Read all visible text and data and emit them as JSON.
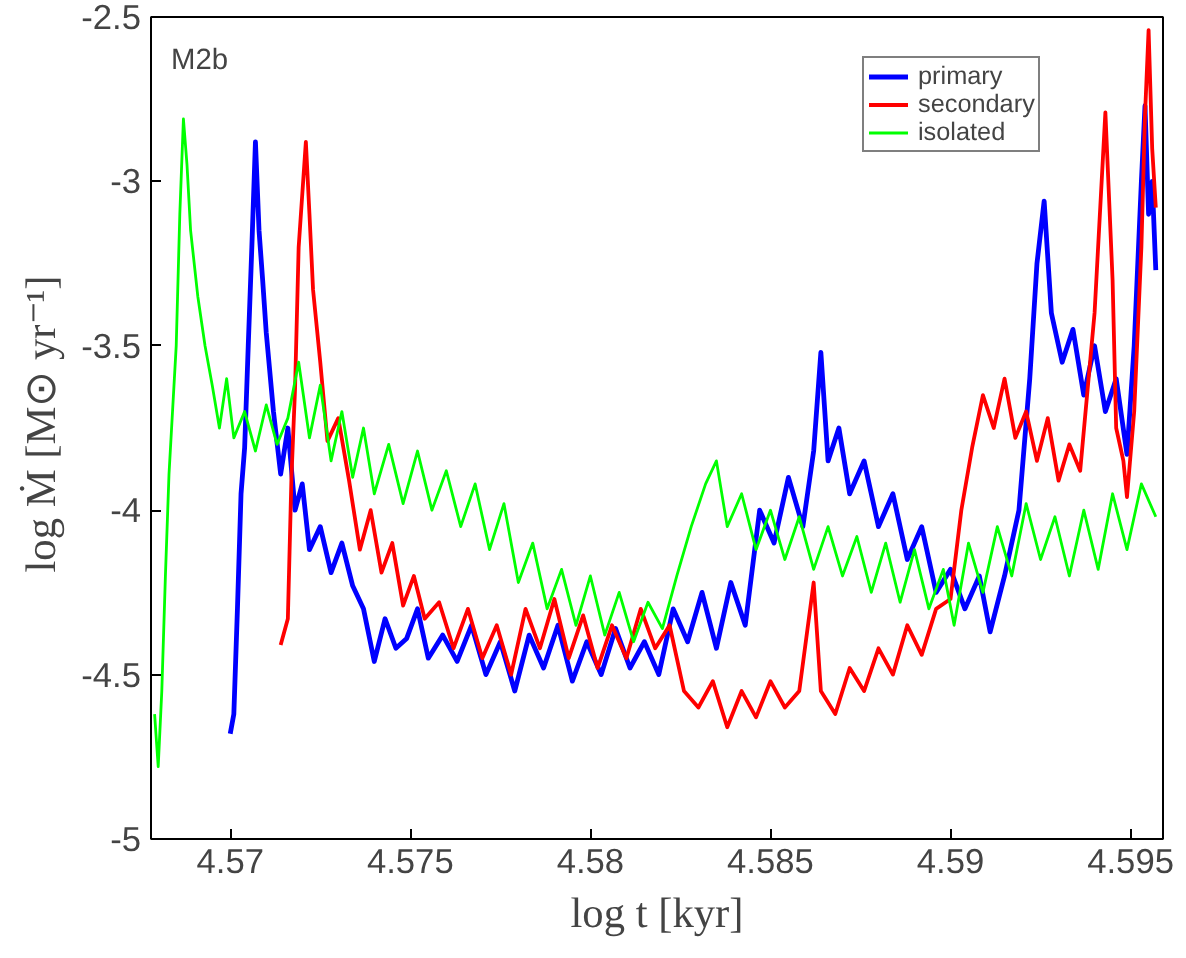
{
  "chart_data": {
    "type": "line",
    "xlabel": "log t [kyr]",
    "ylabel": "log Ṁ [M⊙ yr⁻¹]",
    "annotations": [
      "M2b"
    ],
    "xlim": [
      4.5678,
      4.5959
    ],
    "ylim": [
      -5,
      -2.5
    ],
    "xticks": [
      4.57,
      4.575,
      4.58,
      4.585,
      4.59,
      4.595
    ],
    "yticks": [
      -5,
      -4.5,
      -4,
      -3.5,
      -3,
      -2.5
    ],
    "grid": false,
    "legend": "top right",
    "line_style": "solid",
    "marker": "none",
    "series": [
      {
        "name": "primary",
        "color": "#0000ff",
        "x": [
          4.57,
          4.5701,
          4.5702,
          4.5703,
          4.5704,
          4.5705,
          4.5706,
          4.5707,
          4.5708,
          4.5709,
          4.571,
          4.5712,
          4.5714,
          4.5716,
          4.5718,
          4.572,
          4.5722,
          4.5725,
          4.5728,
          4.5731,
          4.5734,
          4.5737,
          4.574,
          4.5743,
          4.5746,
          4.5749,
          4.5752,
          4.5755,
          4.5759,
          4.5763,
          4.5767,
          4.5771,
          4.5775,
          4.5779,
          4.5783,
          4.5787,
          4.5791,
          4.5795,
          4.5799,
          4.5803,
          4.5807,
          4.5811,
          4.5815,
          4.5819,
          4.5823,
          4.5827,
          4.5831,
          4.5835,
          4.5839,
          4.5843,
          4.5847,
          4.5851,
          4.5855,
          4.5859,
          4.5862,
          4.5864,
          4.5866,
          4.5869,
          4.5872,
          4.5876,
          4.588,
          4.5884,
          4.5888,
          4.5892,
          4.5896,
          4.59,
          4.5904,
          4.5908,
          4.5911,
          4.5915,
          4.5919,
          4.5922,
          4.5924,
          4.5926,
          4.5928,
          4.5931,
          4.5934,
          4.5937,
          4.594,
          4.5943,
          4.5946,
          4.5949,
          4.5951,
          4.5953,
          4.5954,
          4.5955,
          4.5956,
          4.5957
        ],
        "values": [
          -4.68,
          -4.62,
          -4.3,
          -3.95,
          -3.81,
          -3.5,
          -3.2,
          -2.88,
          -3.15,
          -3.3,
          -3.46,
          -3.7,
          -3.89,
          -3.75,
          -4.0,
          -3.92,
          -4.12,
          -4.05,
          -4.19,
          -4.1,
          -4.23,
          -4.3,
          -4.46,
          -4.33,
          -4.42,
          -4.39,
          -4.3,
          -4.45,
          -4.38,
          -4.46,
          -4.35,
          -4.5,
          -4.4,
          -4.55,
          -4.38,
          -4.48,
          -4.35,
          -4.52,
          -4.4,
          -4.5,
          -4.36,
          -4.48,
          -4.4,
          -4.5,
          -4.3,
          -4.4,
          -4.25,
          -4.42,
          -4.22,
          -4.35,
          -4.0,
          -4.1,
          -3.9,
          -4.05,
          -3.82,
          -3.52,
          -3.85,
          -3.75,
          -3.95,
          -3.85,
          -4.05,
          -3.95,
          -4.15,
          -4.05,
          -4.25,
          -4.18,
          -4.3,
          -4.2,
          -4.37,
          -4.2,
          -4.0,
          -3.6,
          -3.25,
          -3.06,
          -3.4,
          -3.55,
          -3.45,
          -3.65,
          -3.5,
          -3.7,
          -3.6,
          -3.83,
          -3.5,
          -3.0,
          -2.77,
          -3.1,
          -3.0,
          -3.27
        ]
      },
      {
        "name": "secondary",
        "color": "#ff0000",
        "x": [
          4.5714,
          4.5716,
          4.5717,
          4.5718,
          4.5719,
          4.5721,
          4.5722,
          4.5723,
          4.5725,
          4.5727,
          4.573,
          4.5733,
          4.5736,
          4.5739,
          4.5742,
          4.5745,
          4.5748,
          4.5751,
          4.5754,
          4.5758,
          4.5762,
          4.5766,
          4.577,
          4.5774,
          4.5778,
          4.5782,
          4.5786,
          4.579,
          4.5794,
          4.5798,
          4.5802,
          4.5806,
          4.581,
          4.5814,
          4.5818,
          4.5822,
          4.5826,
          4.583,
          4.5834,
          4.5838,
          4.5842,
          4.5846,
          4.585,
          4.5854,
          4.5858,
          4.5862,
          4.5864,
          4.5868,
          4.5872,
          4.5876,
          4.588,
          4.5884,
          4.5888,
          4.5892,
          4.5896,
          4.59,
          4.5903,
          4.5906,
          4.5909,
          4.5912,
          4.5915,
          4.5918,
          4.5921,
          4.5924,
          4.5927,
          4.593,
          4.5933,
          4.5936,
          4.594,
          4.5943,
          4.5945,
          4.5946,
          4.5948,
          4.5949,
          4.5951,
          4.5953,
          4.5954,
          4.5955,
          4.5956,
          4.5957
        ],
        "values": [
          -4.41,
          -4.33,
          -3.9,
          -3.63,
          -3.2,
          -2.88,
          -3.1,
          -3.33,
          -3.55,
          -3.79,
          -3.72,
          -3.91,
          -4.12,
          -4.0,
          -4.19,
          -4.1,
          -4.29,
          -4.2,
          -4.33,
          -4.28,
          -4.42,
          -4.3,
          -4.45,
          -4.35,
          -4.5,
          -4.3,
          -4.42,
          -4.27,
          -4.45,
          -4.32,
          -4.48,
          -4.35,
          -4.45,
          -4.3,
          -4.42,
          -4.35,
          -4.55,
          -4.6,
          -4.52,
          -4.66,
          -4.55,
          -4.63,
          -4.52,
          -4.6,
          -4.55,
          -4.22,
          -4.55,
          -4.62,
          -4.48,
          -4.55,
          -4.42,
          -4.5,
          -4.35,
          -4.44,
          -4.3,
          -4.27,
          -4.0,
          -3.81,
          -3.65,
          -3.75,
          -3.6,
          -3.78,
          -3.7,
          -3.85,
          -3.72,
          -3.91,
          -3.8,
          -3.88,
          -3.4,
          -2.79,
          -3.3,
          -3.75,
          -3.85,
          -3.96,
          -3.7,
          -3.2,
          -2.8,
          -2.54,
          -2.9,
          -3.08
        ]
      },
      {
        "name": "isolated",
        "color": "#00ff00",
        "x": [
          4.5679,
          4.568,
          4.5681,
          4.5682,
          4.5683,
          4.5685,
          4.5686,
          4.5687,
          4.5688,
          4.5689,
          4.5691,
          4.5693,
          4.5695,
          4.5697,
          4.5699,
          4.5701,
          4.5704,
          4.5707,
          4.571,
          4.5713,
          4.5716,
          4.5719,
          4.5722,
          4.5725,
          4.5728,
          4.5731,
          4.5734,
          4.5737,
          4.574,
          4.5744,
          4.5748,
          4.5752,
          4.5756,
          4.576,
          4.5764,
          4.5768,
          4.5772,
          4.5776,
          4.578,
          4.5784,
          4.5788,
          4.5792,
          4.5796,
          4.58,
          4.5804,
          4.5808,
          4.5812,
          4.5816,
          4.582,
          4.5824,
          4.5828,
          4.5832,
          4.5835,
          4.5838,
          4.5842,
          4.5846,
          4.585,
          4.5854,
          4.5858,
          4.5862,
          4.5866,
          4.587,
          4.5874,
          4.5878,
          4.5882,
          4.5886,
          4.589,
          4.5894,
          4.5898,
          4.5901,
          4.5905,
          4.5909,
          4.5913,
          4.5917,
          4.5921,
          4.5925,
          4.5929,
          4.5933,
          4.5937,
          4.5941,
          4.5945,
          4.5949,
          4.5953,
          4.5957
        ],
        "values": [
          -4.62,
          -4.78,
          -4.55,
          -4.2,
          -3.89,
          -3.5,
          -3.1,
          -2.81,
          -2.95,
          -3.15,
          -3.35,
          -3.5,
          -3.62,
          -3.75,
          -3.6,
          -3.78,
          -3.7,
          -3.82,
          -3.68,
          -3.8,
          -3.72,
          -3.55,
          -3.78,
          -3.62,
          -3.85,
          -3.7,
          -3.9,
          -3.75,
          -3.95,
          -3.8,
          -3.98,
          -3.82,
          -4.0,
          -3.88,
          -4.05,
          -3.92,
          -4.12,
          -3.98,
          -4.22,
          -4.1,
          -4.3,
          -4.18,
          -4.35,
          -4.2,
          -4.38,
          -4.25,
          -4.4,
          -4.28,
          -4.36,
          -4.2,
          -4.05,
          -3.92,
          -3.85,
          -4.05,
          -3.95,
          -4.12,
          -4.0,
          -4.15,
          -4.02,
          -4.18,
          -4.05,
          -4.2,
          -4.08,
          -4.25,
          -4.1,
          -4.28,
          -4.12,
          -4.3,
          -4.18,
          -4.35,
          -4.1,
          -4.25,
          -4.05,
          -4.2,
          -3.98,
          -4.15,
          -4.02,
          -4.2,
          -4.0,
          -4.18,
          -3.95,
          -4.12,
          -3.92,
          -4.02
        ]
      }
    ]
  }
}
